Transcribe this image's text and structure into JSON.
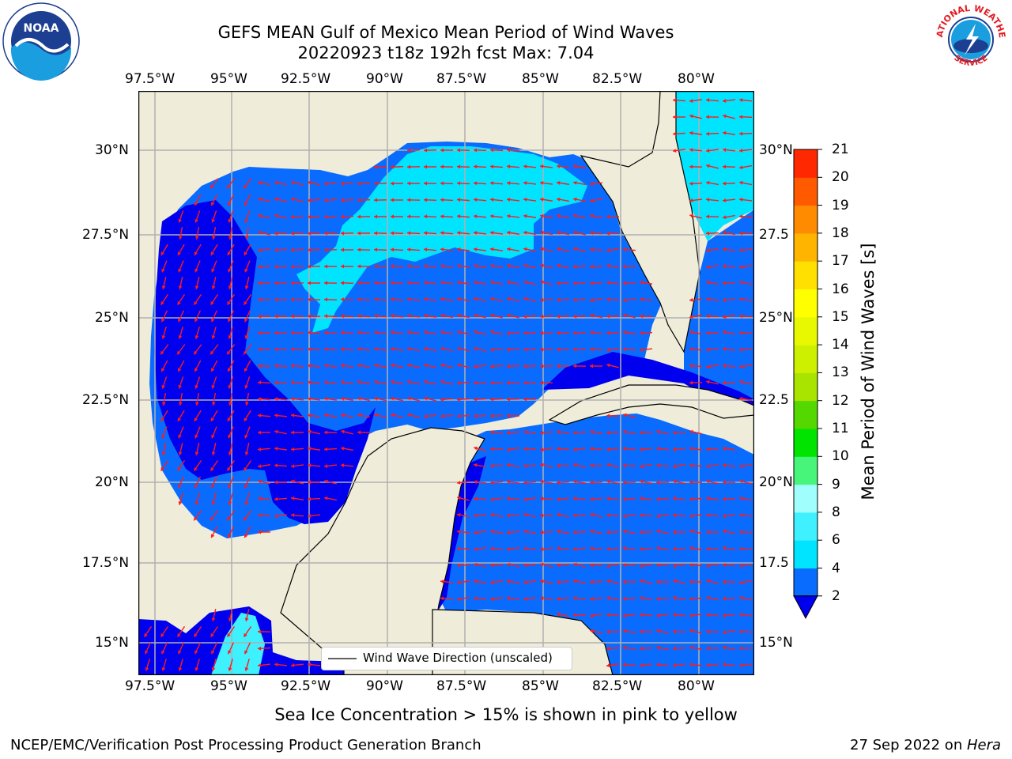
{
  "header": {
    "title_line1": "GEFS MEAN Gulf of Mexico Mean Period of Wind Waves",
    "title_line2": "20220923 t18z 192h fcst   Max: 7.04"
  },
  "axes": {
    "lon_labels": [
      "97.5°W",
      "95°W",
      "92.5°W",
      "90°W",
      "87.5°W",
      "85°W",
      "82.5°W",
      "80°W"
    ],
    "lat_left_labels": [
      "30°N",
      "27.5°N",
      "25°N",
      "22.5°N",
      "20°N",
      "17.5°N",
      "15°N"
    ],
    "lat_right_labels": [
      "30°N",
      "27.5",
      "25°N",
      "22.5",
      "20°N",
      "17.5",
      "15°N"
    ]
  },
  "legend": {
    "label": "Wind Wave Direction (unscaled)"
  },
  "colorbar": {
    "title": "Mean Period of Wind Waves [s]",
    "ticks": [
      "2",
      "4",
      "6",
      "8",
      "9",
      "10",
      "11",
      "12",
      "13",
      "14",
      "15",
      "16",
      "17",
      "18",
      "19",
      "20",
      "21"
    ],
    "colors": [
      "#0a6cff",
      "#00e4ff",
      "#3ff0ff",
      "#a0fffc",
      "#47f57a",
      "#00e400",
      "#55d800",
      "#a8e400",
      "#cdf000",
      "#e8f800",
      "#ffff00",
      "#ffe000",
      "#ffb400",
      "#ff8c00",
      "#ff5a00",
      "#ff2800"
    ],
    "extend_color": "#0000ee"
  },
  "note": "Sea Ice Concentration > 15% is shown in pink to yellow",
  "footer": {
    "left": "NCEP/EMC/Verification Post Processing Product Generation Branch",
    "date": "27 Sep 2022 on ",
    "machine": "Hera"
  },
  "logos": {
    "noaa": "NOAA",
    "nws_top": "NATIONAL WEATHER",
    "nws_bottom": "SERVICE"
  },
  "colors": {
    "land": "#efedda",
    "arrow": "#ff1a1a",
    "grid": "#b0b0b0"
  }
}
